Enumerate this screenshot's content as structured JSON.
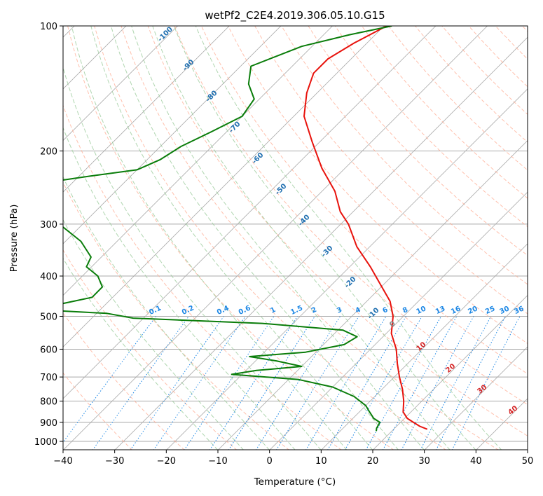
{
  "chart_data": {
    "type": "line",
    "chart_kind": "skew-T log-P diagram",
    "title": "wetPf2_C2E4.2019.306.05.10.G15",
    "xlabel": "Temperature (°C)",
    "ylabel": "Pressure (hPa)",
    "x_unit": "°C",
    "y_unit": "hPa",
    "xlim": [
      -40,
      50
    ],
    "ylim": [
      1050,
      100
    ],
    "y_scale": "log",
    "x_ticks": [
      -40,
      -30,
      -20,
      -10,
      0,
      10,
      20,
      30,
      40,
      50
    ],
    "y_ticks": [
      100,
      200,
      300,
      400,
      500,
      600,
      700,
      800,
      900,
      1000
    ],
    "grid": true,
    "series": [
      {
        "role": "temperature",
        "color": "#e8120c",
        "points": [
          {
            "p": 100,
            "t": -59.5
          },
          {
            "p": 110,
            "t": -62.5
          },
          {
            "p": 120,
            "t": -64.5
          },
          {
            "p": 130,
            "t": -64.5
          },
          {
            "p": 145,
            "t": -62
          },
          {
            "p": 165,
            "t": -58
          },
          {
            "p": 190,
            "t": -51.5
          },
          {
            "p": 220,
            "t": -44.5
          },
          {
            "p": 250,
            "t": -37.5
          },
          {
            "p": 280,
            "t": -32.5
          },
          {
            "p": 300,
            "t": -28.5
          },
          {
            "p": 340,
            "t": -22.5
          },
          {
            "p": 380,
            "t": -16
          },
          {
            "p": 420,
            "t": -10.5
          },
          {
            "p": 460,
            "t": -5.5
          },
          {
            "p": 500,
            "t": -2
          },
          {
            "p": 550,
            "t": 1
          },
          {
            "p": 600,
            "t": 5
          },
          {
            "p": 650,
            "t": 8
          },
          {
            "p": 700,
            "t": 11
          },
          {
            "p": 750,
            "t": 14
          },
          {
            "p": 800,
            "t": 16.5
          },
          {
            "p": 850,
            "t": 18.5
          },
          {
            "p": 880,
            "t": 20.5
          },
          {
            "p": 900,
            "t": 22.5
          },
          {
            "p": 920,
            "t": 24.5
          },
          {
            "p": 935,
            "t": 26.5
          }
        ]
      },
      {
        "role": "dewpoint",
        "color": "#0a7d0a",
        "points": [
          {
            "p": 100,
            "t": -58.5
          },
          {
            "p": 105,
            "t": -65
          },
          {
            "p": 112,
            "t": -72
          },
          {
            "p": 125,
            "t": -78
          },
          {
            "p": 138,
            "t": -75
          },
          {
            "p": 150,
            "t": -71
          },
          {
            "p": 165,
            "t": -70
          },
          {
            "p": 180,
            "t": -73
          },
          {
            "p": 195,
            "t": -76
          },
          {
            "p": 210,
            "t": -77.5
          },
          {
            "p": 222,
            "t": -80
          },
          {
            "p": 230,
            "t": -88
          },
          {
            "p": 238,
            "t": -95
          },
          {
            "p": 248,
            "t": -100
          },
          {
            "p": 256,
            "t": -98.5
          },
          {
            "p": 268,
            "t": -96
          },
          {
            "p": 285,
            "t": -91
          },
          {
            "p": 302,
            "t": -84
          },
          {
            "p": 330,
            "t": -77
          },
          {
            "p": 360,
            "t": -72
          },
          {
            "p": 380,
            "t": -71
          },
          {
            "p": 400,
            "t": -67
          },
          {
            "p": 425,
            "t": -64
          },
          {
            "p": 450,
            "t": -64
          },
          {
            "p": 475,
            "t": -71
          },
          {
            "p": 485,
            "t": -68
          },
          {
            "p": 492,
            "t": -58
          },
          {
            "p": 505,
            "t": -52
          },
          {
            "p": 520,
            "t": -26
          },
          {
            "p": 540,
            "t": -9
          },
          {
            "p": 560,
            "t": -5
          },
          {
            "p": 585,
            "t": -6
          },
          {
            "p": 610,
            "t": -12
          },
          {
            "p": 625,
            "t": -22
          },
          {
            "p": 640,
            "t": -16
          },
          {
            "p": 660,
            "t": -10
          },
          {
            "p": 675,
            "t": -18
          },
          {
            "p": 690,
            "t": -22
          },
          {
            "p": 710,
            "t": -8
          },
          {
            "p": 740,
            "t": 0
          },
          {
            "p": 780,
            "t": 6
          },
          {
            "p": 820,
            "t": 10
          },
          {
            "p": 850,
            "t": 12
          },
          {
            "p": 880,
            "t": 14
          },
          {
            "p": 900,
            "t": 16
          },
          {
            "p": 930,
            "t": 16.5
          },
          {
            "p": 945,
            "t": 17
          }
        ]
      }
    ],
    "dry_adiabat_labels": [
      "-100",
      "-90",
      "-80",
      "-70",
      "-60",
      "-50",
      "-40",
      "-30",
      "-20",
      "-10"
    ],
    "dry_adiabat_label_values": [
      -100,
      -90,
      -80,
      -70,
      -60,
      -50,
      -40,
      -30,
      -20,
      -10
    ],
    "mixing_ratio_labels": [
      "0.1",
      "0.2",
      "0.4",
      "0.6",
      "1",
      "1.5",
      "2",
      "3",
      "4",
      "6",
      "8",
      "10",
      "13",
      "16",
      "20",
      "25",
      "30",
      "36"
    ],
    "mixing_ratio_values": [
      0.1,
      0.2,
      0.4,
      0.6,
      1,
      1.5,
      2,
      3,
      4,
      6,
      8,
      10,
      13,
      16,
      20,
      25,
      30,
      36
    ],
    "moist_adiabat_labels": [
      "0",
      "10",
      "20",
      "30",
      "40"
    ],
    "moist_adiabat_values": [
      0,
      10,
      20,
      30,
      40
    ],
    "colors": {
      "temperature": "#e8120c",
      "dewpoint": "#0a7d0a",
      "dry_adiabat_lines": "#ffab91",
      "dry_adiabat_text": "#1f6fb0",
      "moist_adiabat_lines": "#9ccc9c",
      "mixing_ratio_lines": "#1e88e5",
      "moist_label_text": "#d62728",
      "grid": "#a8a8a8"
    }
  }
}
